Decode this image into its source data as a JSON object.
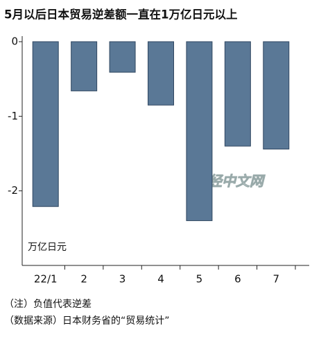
{
  "chart_data": {
    "type": "bar",
    "title": "5月以后日本贸易逆差额一直在1万亿日元以上",
    "unit_label": "万亿日元",
    "categories": [
      "22/1",
      "2",
      "3",
      "4",
      "5",
      "6",
      "7"
    ],
    "values": [
      -2.21,
      -0.66,
      -0.41,
      -0.85,
      -2.4,
      -1.4,
      -1.44
    ],
    "color": "#5a7896",
    "ylim": [
      -3,
      0
    ],
    "yticks": [
      0,
      -1,
      -2
    ],
    "watermark": "日经中文网",
    "notes": [
      "（注）负值代表逆差",
      "（数据来源）日本财务省的“贸易统计”"
    ]
  }
}
